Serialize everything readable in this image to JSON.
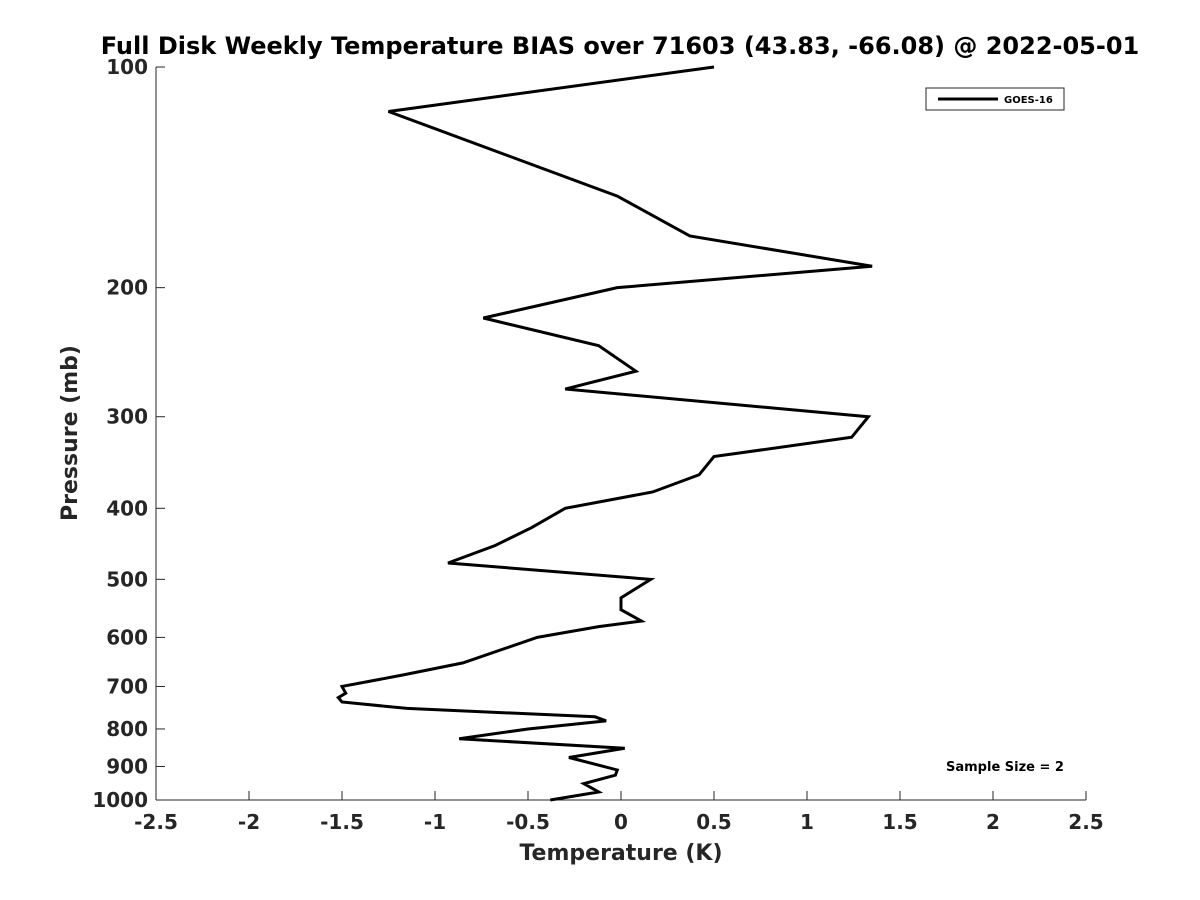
{
  "chart_data": {
    "type": "line",
    "title": "Full Disk Weekly Temperature BIAS over 71603 (43.83, -66.08) @ 2022-05-01",
    "xlabel": "Temperature (K)",
    "ylabel": "Pressure (mb)",
    "xlim": [
      -2.5,
      2.5
    ],
    "ylim": [
      1000,
      100
    ],
    "yscale": "log",
    "xticks": [
      -2.5,
      -2,
      -1.5,
      -1,
      -0.5,
      0,
      0.5,
      1,
      1.5,
      2,
      2.5
    ],
    "xtick_labels": [
      "-2.5",
      "-2",
      "-1.5",
      "-1",
      "-0.5",
      "0",
      "0.5",
      "1",
      "1.5",
      "2",
      "2.5"
    ],
    "yticks": [
      100,
      200,
      300,
      400,
      500,
      600,
      700,
      800,
      900,
      1000
    ],
    "ytick_labels": [
      "100",
      "200",
      "300",
      "400",
      "500",
      "600",
      "700",
      "800",
      "900",
      "1000"
    ],
    "grid": false,
    "legend_position": "top-right",
    "annotation": "Sample Size = 2",
    "series": [
      {
        "name": "GOES-16",
        "color": "#000000",
        "points": [
          [
            0.5,
            100
          ],
          [
            -1.25,
            115
          ],
          [
            -0.02,
            150
          ],
          [
            0.37,
            170
          ],
          [
            1.35,
            187
          ],
          [
            -0.02,
            200
          ],
          [
            -0.74,
            220
          ],
          [
            -0.12,
            240
          ],
          [
            0.08,
            260
          ],
          [
            -0.3,
            275
          ],
          [
            1.33,
            300
          ],
          [
            1.24,
            320
          ],
          [
            0.5,
            340
          ],
          [
            0.42,
            360
          ],
          [
            0.17,
            380
          ],
          [
            -0.3,
            400
          ],
          [
            -0.48,
            425
          ],
          [
            -0.68,
            450
          ],
          [
            -0.93,
            475
          ],
          [
            0.16,
            500
          ],
          [
            0.0,
            530
          ],
          [
            0.0,
            550
          ],
          [
            0.11,
            570
          ],
          [
            -0.12,
            580
          ],
          [
            -0.45,
            600
          ],
          [
            -0.85,
            650
          ],
          [
            -1.17,
            675
          ],
          [
            -1.5,
            700
          ],
          [
            -1.48,
            715
          ],
          [
            -1.52,
            725
          ],
          [
            -1.5,
            735
          ],
          [
            -1.15,
            750
          ],
          [
            -0.14,
            770
          ],
          [
            -0.08,
            780
          ],
          [
            -0.5,
            800
          ],
          [
            -0.87,
            825
          ],
          [
            0.02,
            850
          ],
          [
            -0.28,
            875
          ],
          [
            -0.02,
            910
          ],
          [
            -0.03,
            925
          ],
          [
            -0.2,
            950
          ],
          [
            -0.12,
            975
          ],
          [
            -0.38,
            1000
          ]
        ]
      }
    ]
  }
}
